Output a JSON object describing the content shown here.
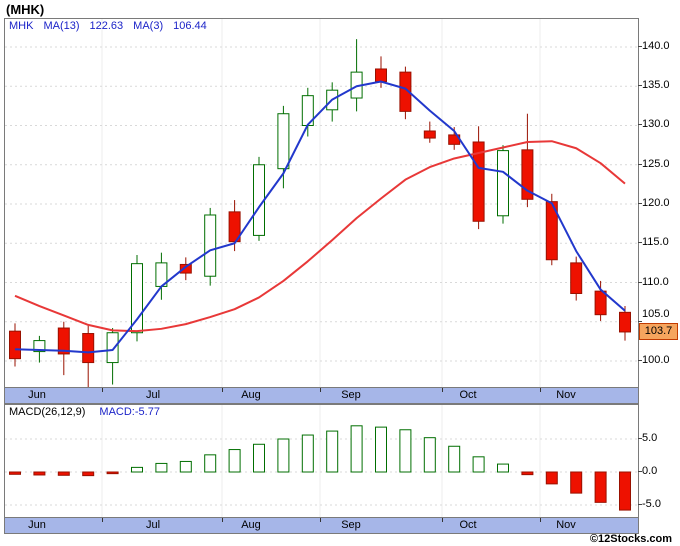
{
  "title": "(MHK)",
  "copyright": "©12Stocks.com",
  "main_chart": {
    "legend": {
      "symbol": "MHK",
      "ma1_label": "MA(13)",
      "ma1_value": "122.63",
      "ma2_label": "MA(3)",
      "ma2_value": "106.44"
    },
    "y_ticks": [
      "140.0",
      "135.0",
      "130.0",
      "125.0",
      "120.0",
      "115.0",
      "110.0",
      "105.0",
      "100.0"
    ],
    "last_price_label": "103.7",
    "months": [
      "Jun",
      "Jul",
      "Aug",
      "Sep",
      "Oct",
      "Nov"
    ]
  },
  "macd_panel": {
    "indicator_label": "MACD(26,12,9)",
    "indicator_value": "MACD:-5.77",
    "y_ticks": [
      "5.0",
      "0.0",
      "-5.0"
    ],
    "months": [
      "Jun",
      "Jul",
      "Aug",
      "Sep",
      "Oct",
      "Nov"
    ]
  },
  "colors": {
    "up_fill": "#ffffff",
    "up_border": "#006e00",
    "down_fill": "#ee1100",
    "down_border": "#991100",
    "ma13_line": "#e83838",
    "ma3_line": "#2238cc",
    "grid": "#d9d9d9",
    "vgrid": "#ededed",
    "band": "#a6b6e8",
    "price_box_bg": "#f6a55e",
    "price_box_border": "#c23b00"
  },
  "chart_data": [
    {
      "type": "candlestick",
      "title": "MHK weekly price",
      "x_months": [
        "Jun",
        "Jul",
        "Aug",
        "Sep",
        "Oct",
        "Nov"
      ],
      "y_range": [
        96.5,
        141
      ],
      "y_tick_values": [
        140,
        135,
        130,
        125,
        120,
        115,
        110,
        105,
        100
      ],
      "last_close": 103.7,
      "candles": [
        [
          103.8,
          104.8,
          99.3,
          100.3
        ],
        [
          101.2,
          103.2,
          99.8,
          102.6
        ],
        [
          104.2,
          105.0,
          98.2,
          100.9
        ],
        [
          103.5,
          104.5,
          96.5,
          99.8
        ],
        [
          99.8,
          104.2,
          97.0,
          103.6
        ],
        [
          103.6,
          113.5,
          102.5,
          112.4
        ],
        [
          109.5,
          113.8,
          107.8,
          112.5
        ],
        [
          112.3,
          113.2,
          110.3,
          111.2
        ],
        [
          110.8,
          119.5,
          109.6,
          118.6
        ],
        [
          119.0,
          120.5,
          114.0,
          115.2
        ],
        [
          116.0,
          126.0,
          115.3,
          125.0
        ],
        [
          124.5,
          132.5,
          122.0,
          131.5
        ],
        [
          130.0,
          134.8,
          128.6,
          133.8
        ],
        [
          132.0,
          135.5,
          130.5,
          134.5
        ],
        [
          133.5,
          141.0,
          131.8,
          136.8
        ],
        [
          137.2,
          138.8,
          134.8,
          135.6
        ],
        [
          136.8,
          137.5,
          130.8,
          131.8
        ],
        [
          129.3,
          130.5,
          127.8,
          128.4
        ],
        [
          128.8,
          129.8,
          126.9,
          127.6
        ],
        [
          127.9,
          129.9,
          116.8,
          117.8
        ],
        [
          118.5,
          127.5,
          117.5,
          126.8
        ],
        [
          126.9,
          131.5,
          119.6,
          120.6
        ],
        [
          120.3,
          121.3,
          112.2,
          112.9
        ],
        [
          112.5,
          113.3,
          107.7,
          108.6
        ],
        [
          108.9,
          110.2,
          105.1,
          105.9
        ],
        [
          106.2,
          107.0,
          102.6,
          103.7
        ]
      ],
      "overlays": [
        {
          "name": "MA(13)",
          "last": 122.63,
          "color_key": "ma13_line",
          "values": [
            108.3,
            107.0,
            105.8,
            104.6,
            103.9,
            103.8,
            104.1,
            104.7,
            105.6,
            106.6,
            108.1,
            110.2,
            112.7,
            115.4,
            118.2,
            120.7,
            123.1,
            124.7,
            125.8,
            126.5,
            127.2,
            127.9,
            128.0,
            127.1,
            125.2,
            122.6
          ]
        },
        {
          "name": "MA(3)",
          "last": 106.44,
          "color_key": "ma3_line",
          "values": [
            101.5,
            101.4,
            101.3,
            101.1,
            101.4,
            105.3,
            109.5,
            112.0,
            114.1,
            115.0,
            119.6,
            123.9,
            130.1,
            133.3,
            135.0,
            135.6,
            134.7,
            131.9,
            129.3,
            124.6,
            124.1,
            121.7,
            120.1,
            114.0,
            109.1,
            106.4
          ]
        }
      ]
    },
    {
      "type": "bar",
      "title": "MACD(26,12,9)",
      "last": -5.77,
      "y_ticks": [
        5,
        0,
        -5
      ],
      "y_range": [
        -7,
        8
      ],
      "values": [
        -0.35,
        -0.45,
        -0.5,
        -0.55,
        -0.25,
        0.7,
        1.3,
        1.6,
        2.6,
        3.4,
        4.2,
        5.0,
        5.6,
        6.2,
        7.0,
        6.8,
        6.4,
        5.2,
        3.9,
        2.3,
        1.2,
        -0.4,
        -1.8,
        -3.2,
        -4.6,
        -5.77
      ]
    }
  ]
}
